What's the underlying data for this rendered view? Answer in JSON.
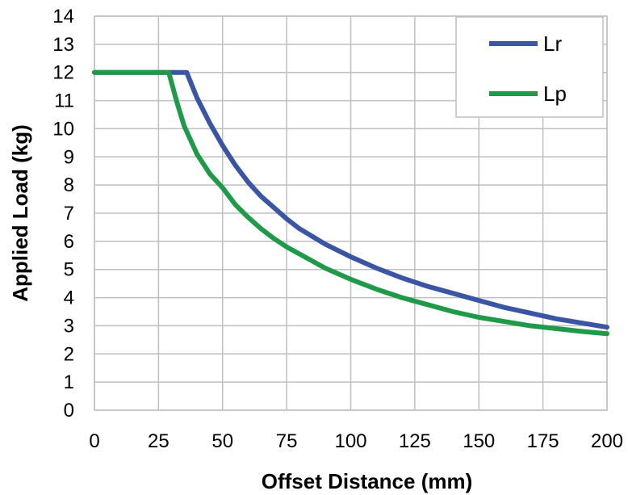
{
  "chart_data": {
    "type": "line",
    "title": "",
    "xlabel": "Offset Distance (mm)",
    "ylabel": "Applied Load (kg)",
    "xlim": [
      0,
      200
    ],
    "ylim": [
      0,
      14
    ],
    "x_ticks": [
      0,
      25,
      50,
      75,
      100,
      125,
      150,
      175,
      200
    ],
    "y_ticks": [
      0,
      1,
      2,
      3,
      4,
      5,
      6,
      7,
      8,
      9,
      10,
      11,
      12,
      13,
      14
    ],
    "x_tick_labels": [
      "0",
      "25",
      "50",
      "75",
      "100",
      "125",
      "150",
      "175",
      "200"
    ],
    "y_tick_labels": [
      "0",
      "1",
      "2",
      "3",
      "4",
      "5",
      "6",
      "7",
      "8",
      "9",
      "10",
      "11",
      "12",
      "13",
      "14"
    ],
    "grid": true,
    "legend_position": "top-right",
    "series": [
      {
        "name": "Lr",
        "color": "#3a55a4",
        "x": [
          0,
          25,
          36,
          40,
          45,
          50,
          55,
          60,
          65,
          70,
          75,
          80,
          90,
          100,
          110,
          120,
          130,
          140,
          150,
          160,
          170,
          180,
          190,
          200
        ],
        "y": [
          12,
          12,
          12,
          11.1,
          10.2,
          9.4,
          8.7,
          8.1,
          7.6,
          7.2,
          6.8,
          6.45,
          5.9,
          5.45,
          5.05,
          4.7,
          4.4,
          4.15,
          3.9,
          3.65,
          3.45,
          3.25,
          3.1,
          2.95
        ]
      },
      {
        "name": "Lp",
        "color": "#1f9a49",
        "x": [
          0,
          25,
          29,
          32,
          35,
          40,
          45,
          50,
          55,
          60,
          65,
          70,
          75,
          80,
          90,
          100,
          110,
          120,
          130,
          140,
          150,
          160,
          170,
          180,
          190,
          200
        ],
        "y": [
          12,
          12,
          12,
          11.0,
          10.1,
          9.1,
          8.4,
          7.9,
          7.3,
          6.85,
          6.45,
          6.1,
          5.8,
          5.55,
          5.05,
          4.65,
          4.3,
          4.0,
          3.75,
          3.5,
          3.3,
          3.15,
          3.0,
          2.9,
          2.8,
          2.72
        ]
      }
    ]
  }
}
